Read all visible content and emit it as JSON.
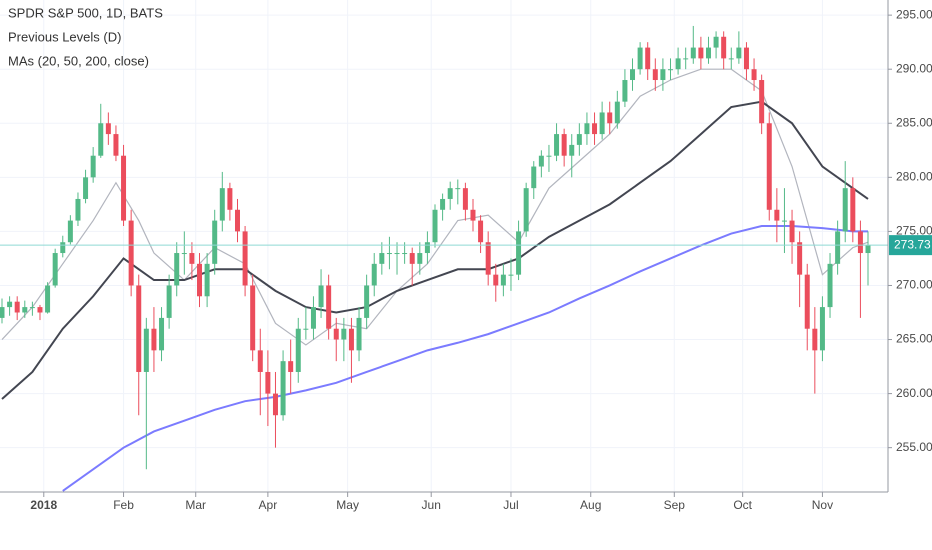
{
  "chart_data": {
    "type": "candlestick",
    "title": "SPDR S&P 500, 1D, BATS",
    "indicators": [
      "Previous Levels (D)",
      "MAs (20, 50, 200, close)"
    ],
    "up_color": "#53b987",
    "down_color": "#eb4d5c",
    "grid": true,
    "xlim": [
      0,
      233
    ],
    "ylim": [
      250.9,
      296.4
    ],
    "xticks": [
      {
        "value": 11,
        "label": "2018"
      },
      {
        "value": 32,
        "label": "Feb"
      },
      {
        "value": 51,
        "label": "Mar"
      },
      {
        "value": 70,
        "label": "Apr"
      },
      {
        "value": 91,
        "label": "May"
      },
      {
        "value": 113,
        "label": "Jun"
      },
      {
        "value": 134,
        "label": "Jul"
      },
      {
        "value": 155,
        "label": "Aug"
      },
      {
        "value": 177,
        "label": "Sep"
      },
      {
        "value": 195,
        "label": "Oct"
      },
      {
        "value": 216,
        "label": "Nov"
      }
    ],
    "yticks": [
      {
        "value": 255,
        "label": "255.00"
      },
      {
        "value": 260,
        "label": "260.00"
      },
      {
        "value": 265,
        "label": "265.00"
      },
      {
        "value": 270,
        "label": "270.00"
      },
      {
        "value": 275,
        "label": "275.00"
      },
      {
        "value": 280,
        "label": "280.00"
      },
      {
        "value": 285,
        "label": "285.00"
      },
      {
        "value": 290,
        "label": "290.00"
      },
      {
        "value": 295,
        "label": "295.00"
      }
    ],
    "last_price": 273.73,
    "last_price_color": "#26a69a",
    "candles": [
      [
        0,
        267,
        268.8,
        266.5,
        268
      ],
      [
        2,
        268,
        269,
        267.2,
        268.5
      ],
      [
        4,
        268.5,
        269,
        266.8,
        267.5
      ],
      [
        6,
        267.5,
        268.6,
        267,
        268
      ],
      [
        8,
        268,
        268.5,
        267.2,
        268
      ],
      [
        10,
        268,
        268.2,
        266.8,
        267.5
      ],
      [
        12,
        267.5,
        270.3,
        267.4,
        270
      ],
      [
        14,
        270,
        273.4,
        269.8,
        273
      ],
      [
        16,
        273,
        274.6,
        272.6,
        274
      ],
      [
        18,
        274,
        276.5,
        273.8,
        276
      ],
      [
        20,
        276,
        278.6,
        275.5,
        278
      ],
      [
        22,
        278,
        280.7,
        277.6,
        280
      ],
      [
        24,
        280,
        282.8,
        279.5,
        282
      ],
      [
        26,
        282,
        286.8,
        281.8,
        285
      ],
      [
        28,
        285,
        286,
        283,
        284
      ],
      [
        30,
        284,
        284.8,
        281.5,
        282
      ],
      [
        32,
        282,
        283,
        275.5,
        276
      ],
      [
        34,
        276,
        277,
        269,
        270
      ],
      [
        36,
        270,
        271,
        258,
        262
      ],
      [
        38,
        262,
        267,
        253,
        266
      ],
      [
        40,
        266,
        268,
        262,
        264
      ],
      [
        42,
        264,
        268,
        263,
        267
      ],
      [
        44,
        267,
        271,
        266,
        270
      ],
      [
        46,
        270,
        274,
        269,
        273
      ],
      [
        48,
        273,
        275,
        271,
        273
      ],
      [
        50,
        273,
        274,
        270.5,
        272
      ],
      [
        52,
        272,
        273,
        268,
        269
      ],
      [
        54,
        269,
        273,
        268,
        272
      ],
      [
        56,
        272,
        277,
        271,
        276
      ],
      [
        58,
        276,
        280.5,
        275,
        279
      ],
      [
        60,
        279,
        279.5,
        276,
        277
      ],
      [
        62,
        277,
        278,
        274,
        275
      ],
      [
        64,
        275,
        275.5,
        269,
        270
      ],
      [
        66,
        270,
        271,
        263,
        264
      ],
      [
        68,
        264,
        266,
        258,
        262
      ],
      [
        70,
        262,
        264,
        257,
        260
      ],
      [
        72,
        260,
        262,
        255,
        258
      ],
      [
        74,
        258,
        264,
        257.5,
        263
      ],
      [
        76,
        263,
        265,
        260,
        262
      ],
      [
        78,
        262,
        267,
        261,
        266
      ],
      [
        80,
        266,
        268,
        265,
        266
      ],
      [
        82,
        266,
        269,
        265,
        268
      ],
      [
        84,
        268,
        271.5,
        267,
        270
      ],
      [
        86,
        270,
        271,
        265,
        266
      ],
      [
        88,
        266,
        267,
        263,
        265
      ],
      [
        90,
        265,
        267,
        263,
        266
      ],
      [
        92,
        266,
        267,
        261,
        264
      ],
      [
        94,
        264,
        268,
        263,
        267
      ],
      [
        96,
        267,
        271,
        266,
        270
      ],
      [
        98,
        270,
        273,
        269,
        272
      ],
      [
        100,
        272,
        274,
        271,
        273
      ],
      [
        102,
        273,
        274.5,
        271.5,
        273
      ],
      [
        104,
        273,
        274,
        271,
        273
      ],
      [
        106,
        273,
        274,
        272,
        273
      ],
      [
        108,
        273,
        273.5,
        270,
        272
      ],
      [
        110,
        272,
        274,
        271,
        273
      ],
      [
        112,
        273,
        275,
        272,
        274
      ],
      [
        114,
        274,
        277.5,
        273.5,
        277
      ],
      [
        116,
        277,
        278.5,
        276,
        278
      ],
      [
        118,
        278,
        279.6,
        277,
        279
      ],
      [
        120,
        279,
        279.8,
        277.5,
        279
      ],
      [
        122,
        279,
        279.5,
        276,
        277
      ],
      [
        124,
        277,
        278,
        275,
        276
      ],
      [
        126,
        276,
        276.5,
        273,
        274
      ],
      [
        128,
        274,
        275,
        270,
        271
      ],
      [
        130,
        271,
        272,
        268.5,
        270
      ],
      [
        132,
        270,
        272,
        269,
        271
      ],
      [
        134,
        271,
        272.5,
        269.5,
        271
      ],
      [
        136,
        271,
        276,
        270.5,
        275
      ],
      [
        138,
        275,
        279.5,
        274.5,
        279
      ],
      [
        140,
        279,
        281.5,
        278,
        281
      ],
      [
        142,
        281,
        282.5,
        280,
        282
      ],
      [
        144,
        282,
        283,
        280.5,
        282
      ],
      [
        146,
        282,
        285,
        281.5,
        284
      ],
      [
        148,
        284,
        284.5,
        281,
        282
      ],
      [
        150,
        282,
        284,
        280,
        283
      ],
      [
        152,
        283,
        285,
        282,
        284
      ],
      [
        154,
        284,
        286,
        283,
        285
      ],
      [
        156,
        285,
        286,
        283,
        284
      ],
      [
        158,
        284,
        287,
        283.5,
        286
      ],
      [
        160,
        286,
        287,
        284,
        285
      ],
      [
        162,
        285,
        288,
        284.5,
        287
      ],
      [
        164,
        287,
        290,
        286.5,
        289
      ],
      [
        166,
        289,
        291,
        288,
        290
      ],
      [
        168,
        290,
        292.5,
        289.5,
        292
      ],
      [
        170,
        292,
        292.5,
        289,
        290
      ],
      [
        172,
        290,
        291,
        288,
        289
      ],
      [
        174,
        289,
        291,
        288,
        290
      ],
      [
        176,
        290,
        291,
        289,
        290
      ],
      [
        178,
        290,
        292,
        289.5,
        291
      ],
      [
        180,
        291,
        292,
        290,
        291
      ],
      [
        182,
        291,
        294,
        290.5,
        292
      ],
      [
        184,
        292,
        293,
        290,
        291
      ],
      [
        186,
        291,
        293,
        290.5,
        292
      ],
      [
        188,
        292,
        293.5,
        291,
        293
      ],
      [
        190,
        293,
        293.5,
        290,
        291
      ],
      [
        192,
        291,
        292,
        290,
        291
      ],
      [
        194,
        291,
        293.5,
        290.5,
        292
      ],
      [
        196,
        292,
        292.5,
        289,
        290
      ],
      [
        198,
        290,
        291,
        288,
        289
      ],
      [
        200,
        289,
        289.5,
        284,
        285
      ],
      [
        202,
        285,
        286,
        276,
        277
      ],
      [
        204,
        277,
        279,
        274,
        276
      ],
      [
        206,
        276,
        279,
        273,
        276
      ],
      [
        208,
        276,
        277,
        272,
        274
      ],
      [
        210,
        274,
        275,
        268,
        271
      ],
      [
        212,
        271,
        272,
        264,
        266
      ],
      [
        214,
        266,
        268,
        260,
        264
      ],
      [
        216,
        264,
        269,
        263,
        268
      ],
      [
        218,
        268,
        273,
        267,
        272
      ],
      [
        220,
        272,
        276,
        271,
        275
      ],
      [
        222,
        275,
        281.5,
        274,
        279
      ],
      [
        224,
        279,
        280,
        274,
        275
      ],
      [
        226,
        275,
        276,
        267,
        273
      ],
      [
        228,
        273,
        275,
        270,
        273.73
      ]
    ],
    "series": [
      {
        "color": "#b2b5be",
        "x": [
          0,
          8,
          16,
          24,
          30,
          36,
          40,
          48,
          56,
          64,
          72,
          80,
          88,
          96,
          104,
          112,
          120,
          128,
          136,
          144,
          152,
          160,
          168,
          176,
          184,
          192,
          200,
          208,
          216,
          224,
          228
        ],
        "values": [
          265,
          268,
          272,
          276,
          279.5,
          276,
          273,
          270.5,
          273.5,
          272,
          266.5,
          264.5,
          266.5,
          266,
          269.5,
          272,
          276,
          276.5,
          274,
          279,
          281.5,
          284,
          287.5,
          289,
          290,
          290,
          288,
          281,
          271,
          273.5,
          274
        ]
      },
      {
        "color": "#434651",
        "x": [
          0,
          8,
          16,
          24,
          32,
          40,
          48,
          56,
          64,
          72,
          80,
          88,
          96,
          104,
          112,
          120,
          128,
          136,
          144,
          152,
          160,
          168,
          176,
          184,
          192,
          200,
          208,
          216,
          224,
          228
        ],
        "values": [
          259.5,
          262,
          266,
          269,
          272.5,
          270.5,
          270.5,
          271.5,
          271.5,
          269.5,
          268,
          267.5,
          268,
          269.5,
          270.5,
          271.5,
          271.5,
          272.5,
          274.5,
          276,
          277.5,
          279.5,
          281.5,
          284,
          286.5,
          287,
          285,
          281,
          279,
          278
        ]
      },
      {
        "color": "#7b7bff",
        "x": [
          16,
          24,
          32,
          40,
          48,
          56,
          64,
          72,
          80,
          88,
          96,
          104,
          112,
          120,
          128,
          136,
          144,
          152,
          160,
          168,
          176,
          184,
          192,
          200,
          208,
          216,
          224,
          228
        ],
        "values": [
          251,
          253,
          255,
          256.5,
          257.5,
          258.5,
          259.3,
          259.7,
          260.3,
          261,
          262,
          263,
          264,
          264.7,
          265.5,
          266.5,
          267.5,
          268.8,
          270,
          271.3,
          272.5,
          273.7,
          274.8,
          275.5,
          275.5,
          275.3,
          275,
          275
        ]
      }
    ]
  }
}
